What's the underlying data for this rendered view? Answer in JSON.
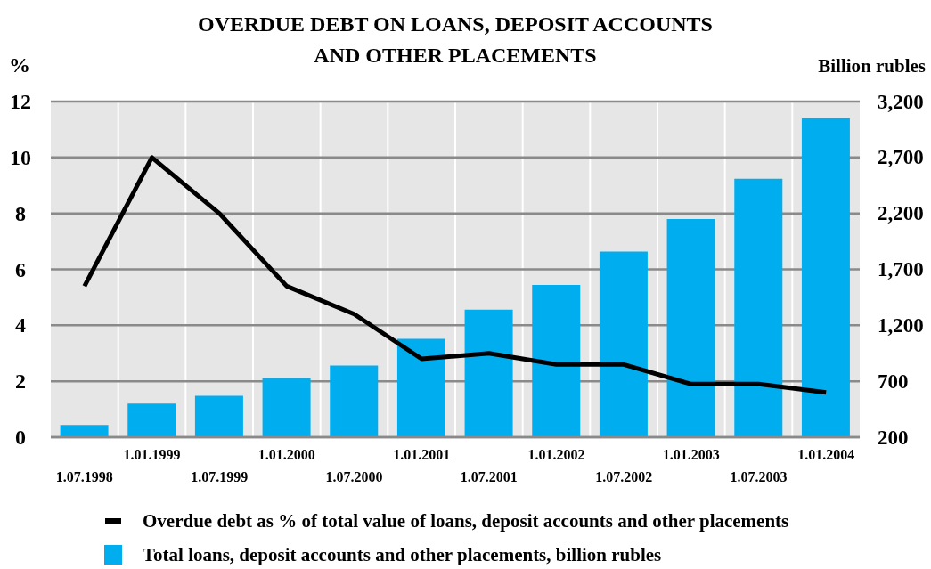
{
  "chart_data": {
    "type": "bar",
    "title": "OVERDUE DEBT ON LOANS, DEPOSIT ACCOUNTS AND OTHER PLACEMENTS",
    "ylabel": "%",
    "y2label": "Billion rubles",
    "categories": [
      "1.07.1998",
      "1.01.1999",
      "1.07.1999",
      "1.01.2000",
      "1.07.2000",
      "1.01.2001",
      "1.07.2001",
      "1.01.2002",
      "1.07.2002",
      "1.01.2003",
      "1.07.2003",
      "1.01.2004"
    ],
    "series": [
      {
        "name": "Overdue debt as % of total value of loans, deposit accounts and other placements",
        "type": "line",
        "color": "#000000",
        "values": [
          5.4,
          10.0,
          8.0,
          5.4,
          4.4,
          2.8,
          3.0,
          2.6,
          2.6,
          1.9,
          1.9,
          1.6
        ]
      },
      {
        "name": "Total loans, deposit accounts and other placements, billion rubles",
        "axis": "y2",
        "color": "#00aeef",
        "values": [
          310,
          500,
          570,
          730,
          840,
          1080,
          1340,
          1560,
          1860,
          2150,
          2510,
          3050
        ]
      }
    ],
    "ylim": [
      0,
      12
    ],
    "yticks": [
      0,
      2,
      4,
      6,
      8,
      10,
      12
    ],
    "y2lim": [
      200,
      3200
    ],
    "y2ticks": [
      {
        "value": 200,
        "label": "200"
      },
      {
        "value": 700,
        "label": "700"
      },
      {
        "value": 1200,
        "label": "1,200"
      },
      {
        "value": 1700,
        "label": "1,700"
      },
      {
        "value": 2200,
        "label": "2,200"
      },
      {
        "value": 2700,
        "label": "2,700"
      },
      {
        "value": 3200,
        "label": "3,200"
      }
    ],
    "grid": true,
    "legend": "bottom",
    "marker": "none"
  }
}
